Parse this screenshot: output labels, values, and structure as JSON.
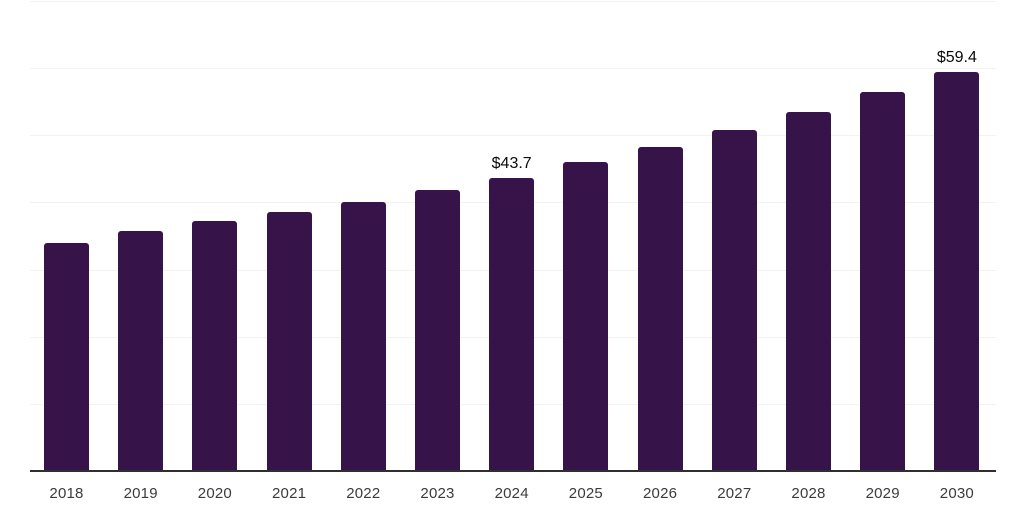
{
  "chart_data": {
    "type": "bar",
    "title": "",
    "xlabel": "",
    "ylabel": "",
    "categories": [
      "2018",
      "2019",
      "2020",
      "2021",
      "2022",
      "2023",
      "2024",
      "2025",
      "2026",
      "2027",
      "2028",
      "2029",
      "2030"
    ],
    "values": [
      34.0,
      35.7,
      37.2,
      38.6,
      40.1,
      41.9,
      43.7,
      46.0,
      48.3,
      50.8,
      53.5,
      56.4,
      59.4
    ],
    "data_labels": [
      {
        "category": "2024",
        "text": "$43.7"
      },
      {
        "category": "2030",
        "text": "$59.4"
      }
    ],
    "ylim": [
      0,
      70
    ],
    "grid_step": 10,
    "grid": "horizontal",
    "y_axis_labels": "none",
    "legend": "none",
    "colors": {
      "bar": "#361349",
      "axis_line": "#2f2f2f",
      "gridline": "#f2f2f2",
      "tick_label": "#3b3b3b",
      "data_label": "#0a0a0a",
      "background": "#ffffff"
    }
  }
}
